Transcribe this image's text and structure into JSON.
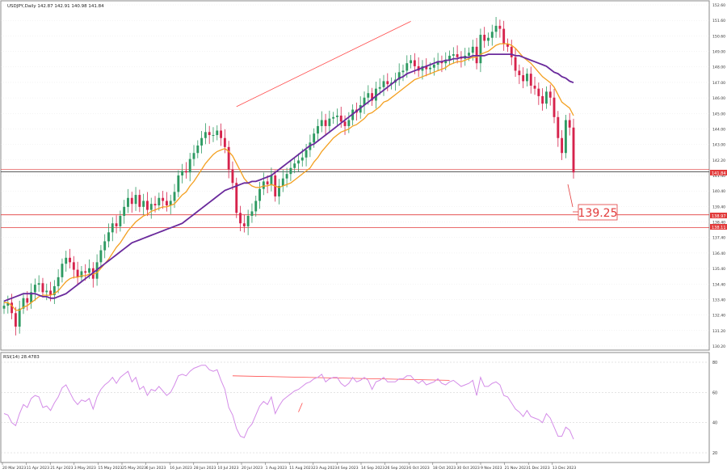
{
  "header": {
    "symbol_info": "USDJPY,Daily  142.87 142.91 140.98 141.84",
    "rsi_info": "RSI(14) 28.4783"
  },
  "colors": {
    "bull": "#2e9a62",
    "bear": "#d6234c",
    "ema_fast": "#f4a020",
    "ma_slow": "#6a2a9c",
    "rsi": "#d48ce8",
    "trend": "#ff4b4b",
    "level": "#e23b3b",
    "grid": "#e2e2e2"
  },
  "annotations": {
    "target_label": "139.25",
    "current_price_tag": "141.84",
    "level_tag_1": "138.97",
    "level_tag_2": "138.11"
  },
  "chart_data": [
    {
      "type": "candlestick",
      "title": "USDJPY,Daily",
      "ylim": [
        130.2,
        153.0
      ],
      "y_tick_labels": [
        "152.60",
        "151.60",
        "150.60",
        "149.00",
        "148.00",
        "147.00",
        "146.00",
        "145.00",
        "144.00",
        "143.00",
        "142.20",
        "141.40",
        "140.40",
        "139.40",
        "138.40",
        "137.40",
        "136.40",
        "135.40",
        "134.40",
        "133.40",
        "132.40",
        "131.20",
        "130.20"
      ],
      "x_tick_labels": [
        "20 Mar 2023",
        "11 Apr 2023",
        "21 Apr 2023",
        "3 May 2023",
        "15 May 2023",
        "25 May 2023",
        "6 Jun 2023",
        "16 Jun 2023",
        "28 Jun 2023",
        "10 Jul 2023",
        "20 Jul 2023",
        "1 Aug 2023",
        "11 Aug 2023",
        "23 Aug 2023",
        "4 Sep 2023",
        "14 Sep 2023",
        "26 Sep 2023",
        "6 Oct 2023",
        "18 Oct 2023",
        "30 Oct 2023",
        "9 Nov 2023",
        "21 Nov 2023",
        "1 Dec 2023",
        "13 Dec 2023"
      ],
      "horizontal_levels": [
        141.84,
        138.97,
        138.11
      ],
      "projection_target": 139.25,
      "series": [
        {
          "name": "Close",
          "indicator": "price",
          "values": [
            132.9,
            133.1,
            132.4,
            131.5,
            132.7,
            133.4,
            133.1,
            133.8,
            134.3,
            134.4,
            133.8,
            133.9,
            133.6,
            134.2,
            134.8,
            135.7,
            136.1,
            135.8,
            135.3,
            134.8,
            135.2,
            135.1,
            135.4,
            134.7,
            135.8,
            136.6,
            137.2,
            137.8,
            138.4,
            138.2,
            138.9,
            139.5,
            140.1,
            139.7,
            140.3,
            139.5,
            139.9,
            139.3,
            139.7,
            139.6,
            140.1,
            139.9,
            139.6,
            139.9,
            140.5,
            141.6,
            141.9,
            141.8,
            142.7,
            143.1,
            143.6,
            144.1,
            144.5,
            144.3,
            144.3,
            144.6,
            144.1,
            143.5,
            142.0,
            141.1,
            139.1,
            138.4,
            138.2,
            138.9,
            139.2,
            139.9,
            140.7,
            141.2,
            141.0,
            141.6,
            140.2,
            140.9,
            141.4,
            141.7,
            142.1,
            142.4,
            142.6,
            142.8,
            143.3,
            143.8,
            144.4,
            144.9,
            145.3,
            144.9,
            145.4,
            145.5,
            145.6,
            145.2,
            144.9,
            145.3,
            146.0,
            145.8,
            146.3,
            146.8,
            147.1,
            146.6,
            147.4,
            147.5,
            147.9,
            147.7,
            147.8,
            148.0,
            148.5,
            148.6,
            149.1,
            149.3,
            148.9,
            148.6,
            148.9,
            148.7,
            148.8,
            149.0,
            149.2,
            149.1,
            149.3,
            149.6,
            149.7,
            149.5,
            149.4,
            149.6,
            149.8,
            150.2,
            149.1,
            151.0,
            150.6,
            150.8,
            151.2,
            151.6,
            151.4,
            150.4,
            150.2,
            149.5,
            148.6,
            148.3,
            147.9,
            148.4,
            147.6,
            147.4,
            146.9,
            146.4,
            147.2,
            146.8,
            145.5,
            144.1,
            143.1,
            145.3,
            144.8,
            141.8
          ]
        },
        {
          "name": "EMA",
          "indicator": "moving_average",
          "values": [
            133.1,
            133.1,
            132.9,
            132.6,
            132.6,
            132.8,
            132.9,
            133.1,
            133.3,
            133.5,
            133.6,
            133.6,
            133.6,
            133.7,
            133.9,
            134.2,
            134.5,
            134.7,
            134.8,
            134.8,
            134.9,
            134.9,
            135.0,
            135.0,
            135.1,
            135.4,
            135.7,
            136.0,
            136.4,
            136.8,
            137.1,
            137.5,
            137.9,
            138.2,
            138.5,
            138.7,
            138.9,
            139.0,
            139.2,
            139.3,
            139.4,
            139.5,
            139.5,
            139.6,
            139.7,
            140.0,
            140.3,
            140.5,
            140.9,
            141.2,
            141.6,
            142.0,
            142.4,
            142.7,
            143.0,
            143.2,
            143.3,
            143.4,
            143.2,
            142.9,
            142.4,
            141.9,
            141.4,
            141.1,
            140.9,
            140.8,
            140.8,
            140.9,
            140.9,
            141.0,
            140.9,
            140.8,
            140.9,
            141.0,
            141.1,
            141.3,
            141.5,
            141.7,
            141.9,
            142.1,
            142.5,
            142.8,
            143.2,
            143.5,
            143.8,
            144.1,
            144.3,
            144.5,
            144.6,
            144.7,
            144.9,
            145.0,
            145.2,
            145.4,
            145.7,
            145.8,
            146.0,
            146.2,
            146.5,
            146.6,
            146.8,
            147.0,
            147.2,
            147.4,
            147.6,
            147.8,
            148.0,
            148.1,
            148.2,
            148.3,
            148.4,
            148.5,
            148.6,
            148.7,
            148.8,
            149.0,
            149.1,
            149.2,
            149.2,
            149.3,
            149.4,
            149.5,
            149.5,
            149.7,
            149.8,
            149.9,
            150.1,
            150.3,
            150.4,
            150.4,
            150.4,
            150.3,
            150.1,
            149.8,
            149.5,
            149.3,
            149.1,
            148.8,
            148.5,
            148.2,
            148.0,
            147.8,
            147.5,
            147.0,
            146.5,
            146.3,
            146.1,
            145.6
          ]
        },
        {
          "name": "MA",
          "indicator": "moving_average",
          "values": [
            133.2,
            133.3,
            133.4,
            133.5,
            133.6,
            133.7,
            133.7,
            133.7,
            133.7,
            133.6,
            133.5,
            133.5,
            133.4,
            133.4,
            133.5,
            133.6,
            133.7,
            133.9,
            134.1,
            134.3,
            134.5,
            134.7,
            134.9,
            135.1,
            135.3,
            135.5,
            135.7,
            135.9,
            136.1,
            136.3,
            136.5,
            136.7,
            136.9,
            137.1,
            137.2,
            137.3,
            137.4,
            137.5,
            137.6,
            137.7,
            137.8,
            137.9,
            138.0,
            138.1,
            138.2,
            138.3,
            138.4,
            138.6,
            138.8,
            139.0,
            139.2,
            139.4,
            139.6,
            139.8,
            140.0,
            140.2,
            140.4,
            140.6,
            140.7,
            140.8,
            140.9,
            141.0,
            141.1,
            141.1,
            141.2,
            141.2,
            141.3,
            141.4,
            141.5,
            141.6,
            141.8,
            142.0,
            142.2,
            142.4,
            142.6,
            142.8,
            143.0,
            143.2,
            143.4,
            143.6,
            143.7,
            143.9,
            144.1,
            144.3,
            144.5,
            144.7,
            144.9,
            145.1,
            145.3,
            145.5,
            145.7,
            145.9,
            146.1,
            146.3,
            146.5,
            146.7,
            146.9,
            147.1,
            147.3,
            147.5,
            147.7,
            147.9,
            148.1,
            148.2,
            148.4,
            148.5,
            148.6,
            148.7,
            148.8,
            148.9,
            149.0,
            149.1,
            149.2,
            149.2,
            149.3,
            149.3,
            149.4,
            149.4,
            149.5,
            149.5,
            149.5,
            149.6,
            149.6,
            149.6,
            149.6,
            149.7,
            149.7,
            149.7,
            149.7,
            149.7,
            149.7,
            149.7,
            149.6,
            149.6,
            149.5,
            149.4,
            149.3,
            149.2,
            149.1,
            149.0,
            148.9,
            148.7,
            148.5,
            148.4,
            148.2,
            148.1,
            147.9,
            147.8
          ]
        }
      ]
    },
    {
      "type": "line",
      "title": "RSI(14) 28.4783",
      "ylim": [
        20,
        80
      ],
      "y_tick_labels": [
        "80",
        "60",
        "40",
        "20"
      ],
      "series": [
        {
          "name": "RSI(14)",
          "values": [
            46,
            45,
            40,
            38,
            46,
            52,
            50,
            56,
            58,
            57,
            50,
            51,
            48,
            53,
            57,
            63,
            65,
            60,
            55,
            52,
            55,
            54,
            56,
            49,
            57,
            62,
            65,
            67,
            70,
            66,
            70,
            72,
            74,
            67,
            70,
            62,
            64,
            58,
            62,
            61,
            64,
            61,
            58,
            60,
            65,
            71,
            72,
            71,
            74,
            76,
            77,
            78,
            78,
            75,
            74,
            75,
            68,
            62,
            50,
            45,
            36,
            31,
            30,
            36,
            39,
            45,
            51,
            54,
            52,
            57,
            46,
            51,
            55,
            57,
            59,
            61,
            62,
            64,
            66,
            67,
            69,
            70,
            72,
            67,
            69,
            70,
            70,
            66,
            64,
            66,
            70,
            67,
            68,
            70,
            68,
            62,
            67,
            68,
            70,
            67,
            67,
            67,
            69,
            69,
            71,
            71,
            68,
            66,
            68,
            65,
            66,
            67,
            69,
            66,
            65,
            67,
            68,
            66,
            64,
            65,
            66,
            68,
            58,
            70,
            64,
            64,
            66,
            67,
            65,
            58,
            57,
            53,
            49,
            47,
            44,
            48,
            44,
            43,
            42,
            40,
            46,
            43,
            37,
            31,
            31,
            37,
            35,
            29
          ]
        }
      ]
    }
  ]
}
